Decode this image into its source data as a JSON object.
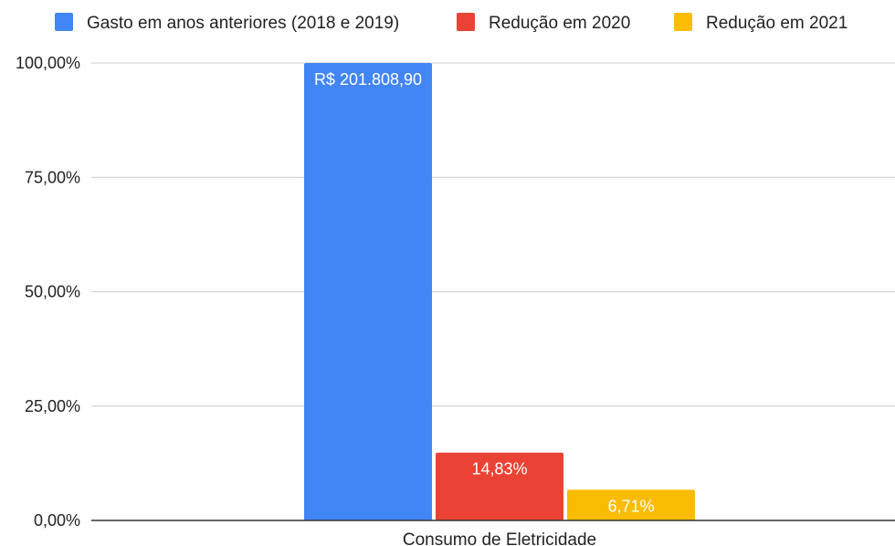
{
  "chart_data": {
    "type": "bar",
    "categories": [
      "Consumo de Eletricidade"
    ],
    "series": [
      {
        "name": "Gasto em anos anteriores (2018 e 2019)",
        "values": [
          100.0
        ],
        "color": "#4285f4",
        "data_label": "R$ 201.808,90"
      },
      {
        "name": "Redução em 2020",
        "values": [
          14.83
        ],
        "color": "#ea4335",
        "data_label": "14,83%"
      },
      {
        "name": "Redução em 2021",
        "values": [
          6.71
        ],
        "color": "#fbbc04",
        "data_label": "6,71%"
      }
    ],
    "ylim": [
      0,
      100
    ],
    "y_ticks": [
      0,
      25,
      50,
      75,
      100
    ],
    "y_tick_labels": [
      "0,00%",
      "25,00%",
      "50,00%",
      "75,00%",
      "100,00%"
    ],
    "title": "",
    "xlabel": "",
    "ylabel": "",
    "grid": true,
    "legend_position": "top"
  }
}
